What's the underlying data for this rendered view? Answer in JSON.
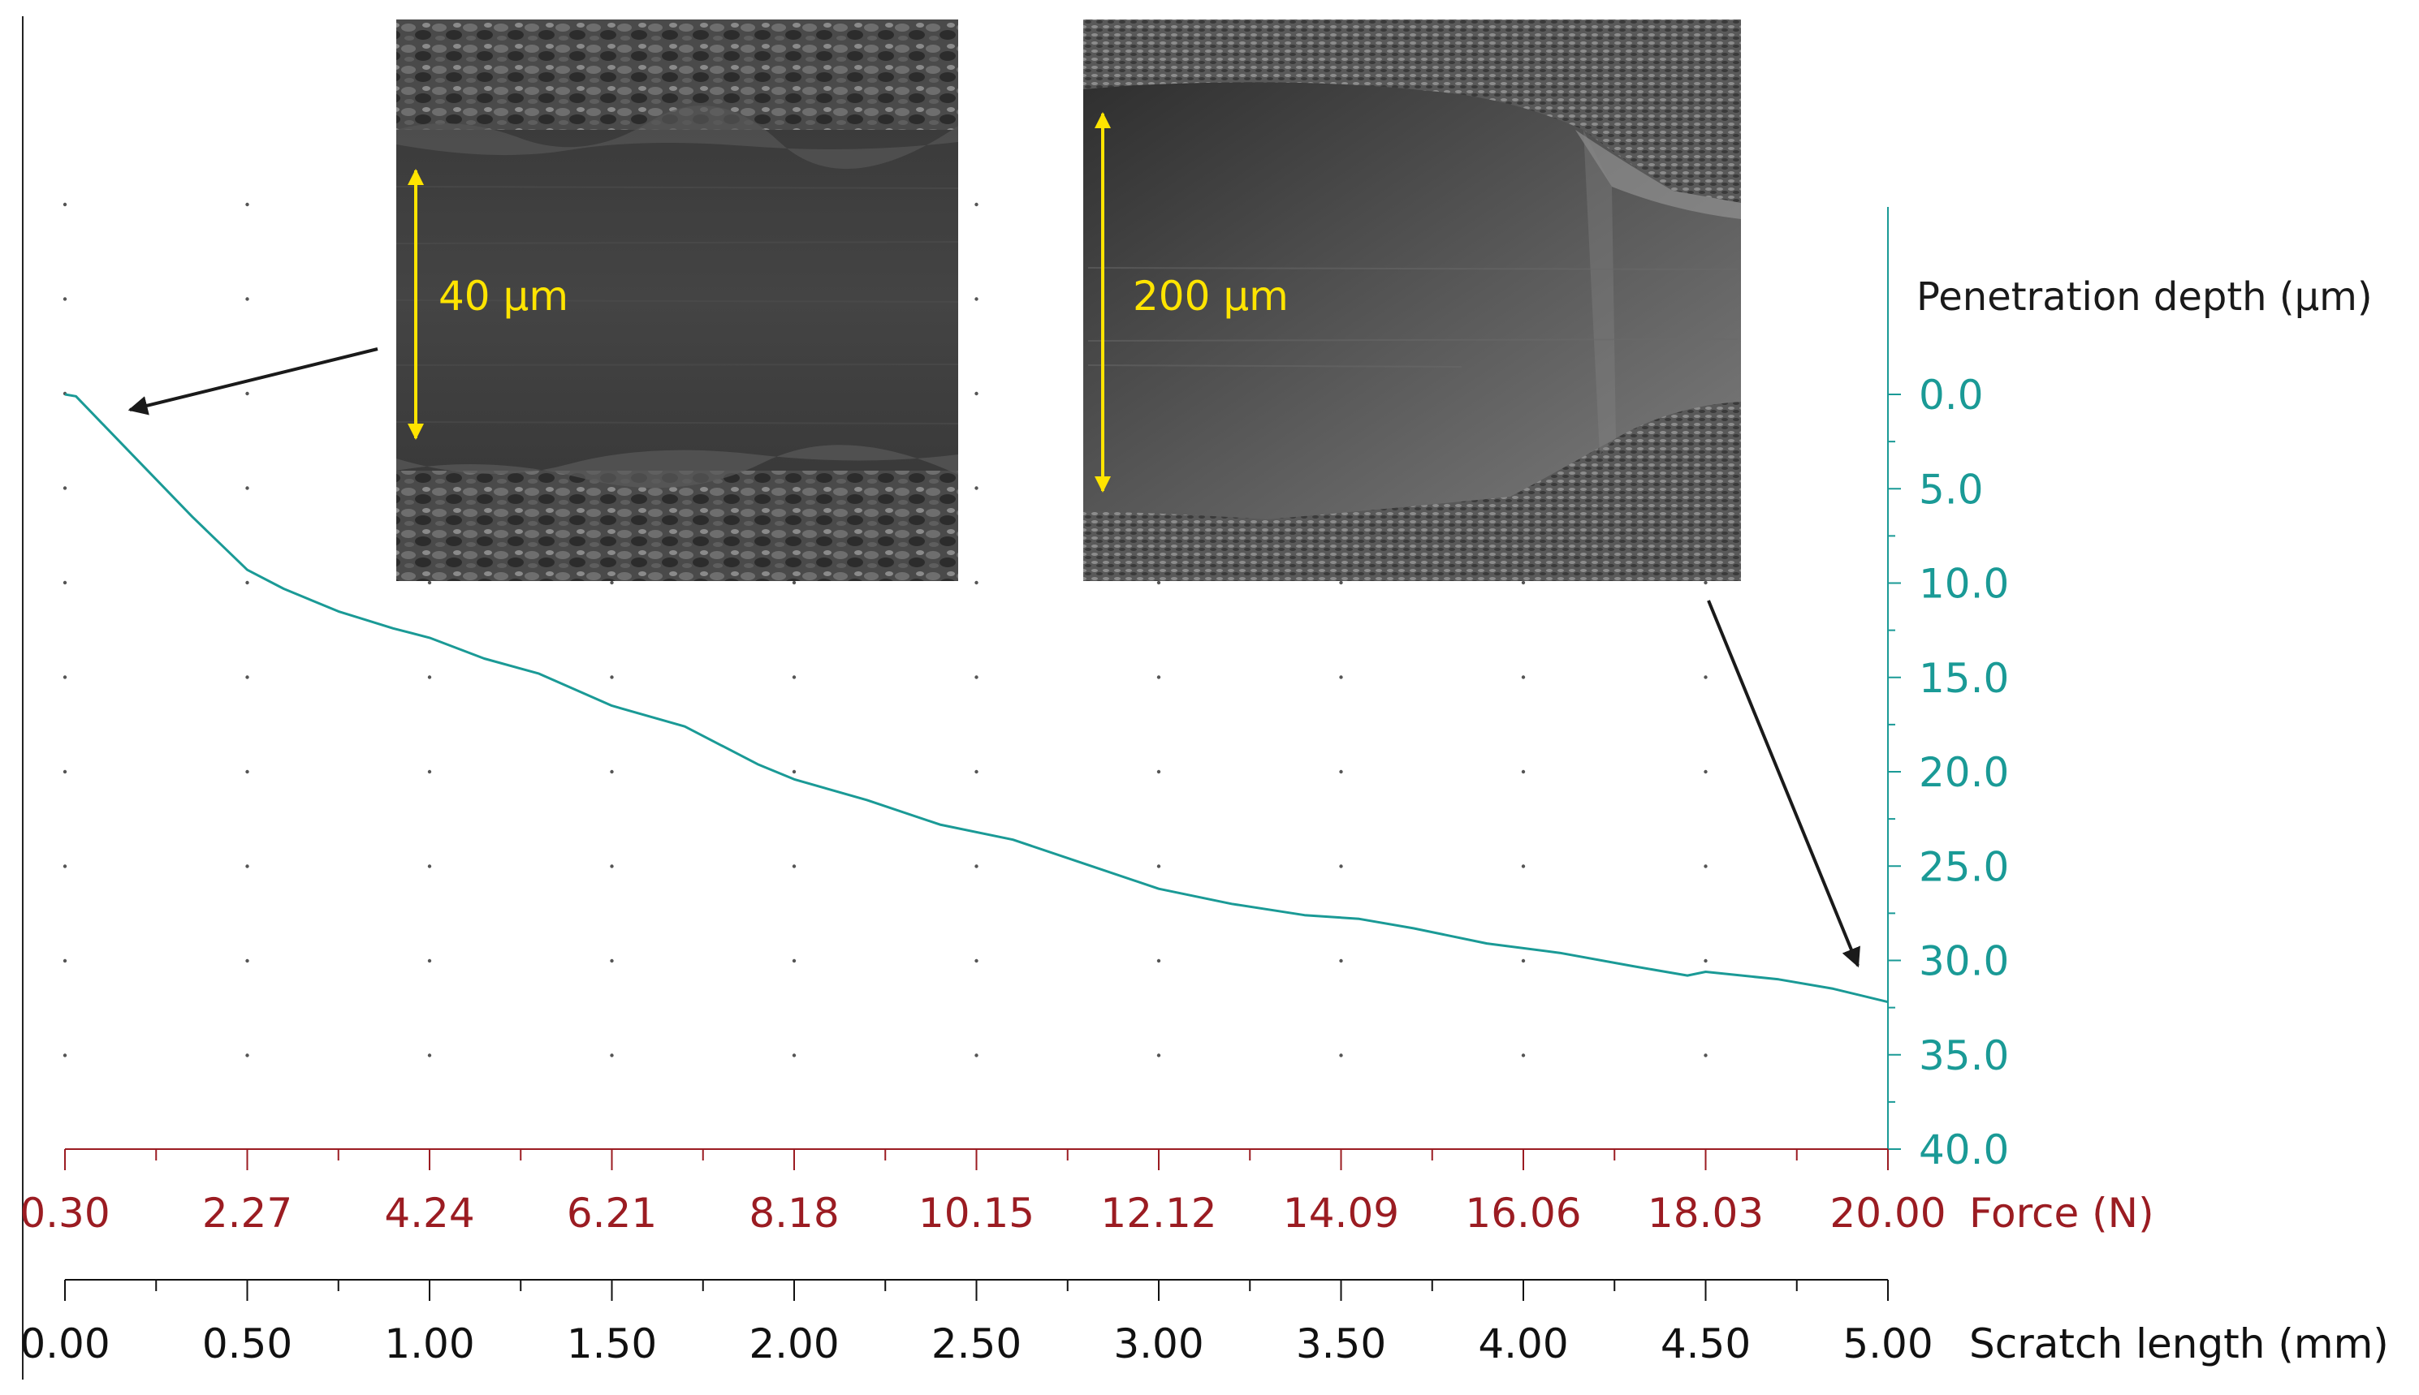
{
  "chart_data": {
    "type": "line",
    "y_axis": {
      "label": "Penetration depth (µm)",
      "ticks": [
        "0.0",
        "5.0",
        "10.0",
        "15.0",
        "20.0",
        "25.0",
        "30.0",
        "35.0",
        "40.0"
      ],
      "range": [
        0,
        40
      ],
      "inverted": true,
      "color": "#1a9a96"
    },
    "force_axis": {
      "label": "Force (N)",
      "ticks": [
        "0.30",
        "2.27",
        "4.24",
        "6.21",
        "8.18",
        "10.15",
        "12.12",
        "14.09",
        "16.06",
        "18.03",
        "20.00"
      ],
      "range": [
        0.3,
        20.0
      ],
      "color": "#9b1c22"
    },
    "length_axis": {
      "label": "Scratch length (mm)",
      "ticks": [
        "0.00",
        "0.50",
        "1.00",
        "1.50",
        "2.00",
        "2.50",
        "3.00",
        "3.50",
        "4.00",
        "4.50",
        "5.00"
      ],
      "range": [
        0,
        5
      ],
      "color": "#111111"
    },
    "grid": "dots",
    "series": [
      {
        "color": "#1a9a96",
        "x": [
          0.0,
          0.03,
          0.1,
          0.2,
          0.35,
          0.5,
          0.6,
          0.75,
          0.9,
          1.0,
          1.15,
          1.3,
          1.5,
          1.7,
          1.9,
          2.0,
          2.2,
          2.4,
          2.6,
          2.8,
          3.0,
          3.2,
          3.4,
          3.55,
          3.7,
          3.9,
          4.1,
          4.3,
          4.45,
          4.5,
          4.7,
          4.85,
          5.0
        ],
        "y": [
          0.0,
          0.1,
          1.5,
          3.5,
          6.5,
          9.3,
          10.3,
          11.5,
          12.4,
          12.9,
          14.0,
          14.8,
          16.5,
          17.6,
          19.6,
          20.4,
          21.5,
          22.8,
          23.6,
          24.9,
          26.2,
          27.0,
          27.6,
          27.8,
          28.3,
          29.1,
          29.6,
          30.3,
          30.8,
          30.6,
          31.0,
          31.5,
          32.2
        ]
      }
    ],
    "insets": [
      {
        "scale_label": "40 µm",
        "points_to_length_mm": 0.15
      },
      {
        "scale_label": "200 µm",
        "points_to_length_mm": 5.0
      }
    ]
  }
}
